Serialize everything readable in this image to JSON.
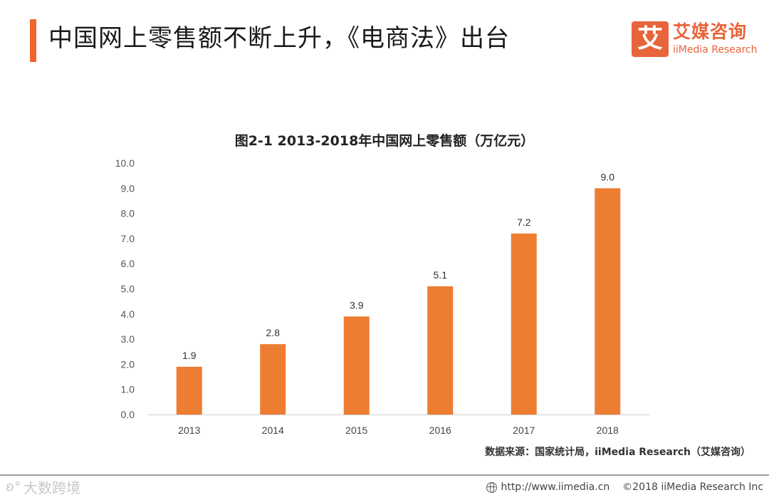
{
  "page": {
    "title": "中国网上零售额不断上升，《电商法》出台"
  },
  "logo": {
    "mark": "艾",
    "name_cn": "艾媒咨询",
    "name_en": "iiMedia Research"
  },
  "chart_data": {
    "type": "bar",
    "title": "图2-1 2013-2018年中国网上零售额（万亿元）",
    "categories": [
      "2013",
      "2014",
      "2015",
      "2016",
      "2017",
      "2018"
    ],
    "values": [
      1.9,
      2.8,
      3.9,
      5.1,
      7.2,
      9.0
    ],
    "data_labels": [
      "1.9",
      "2.8",
      "3.9",
      "5.1",
      "7.2",
      "9.0"
    ],
    "y_ticks": [
      "0.0",
      "1.0",
      "2.0",
      "3.0",
      "4.0",
      "5.0",
      "6.0",
      "7.0",
      "8.0",
      "9.0",
      "10.0"
    ],
    "ylim": [
      0,
      10
    ],
    "xlabel": "",
    "ylabel": "",
    "grid": false,
    "bar_color": "#ed7d31"
  },
  "source": "数据来源：国家统计局，iiMedia Research（艾媒咨询）",
  "footer": {
    "watermark": "大数跨境",
    "url": "http://www.iimedia.cn",
    "copyright": "©2018 iiMedia Research Inc"
  }
}
